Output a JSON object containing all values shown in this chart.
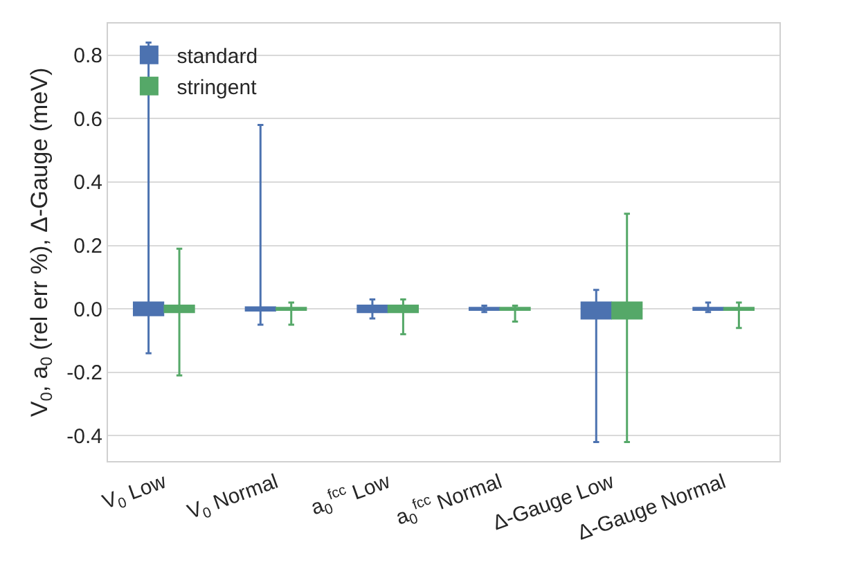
{
  "chart_data": {
    "type": "box",
    "ylabel": "V$_{0}$, a$_{0}$ (rel err %), Δ-Gauge (meV)",
    "categories": [
      "V$_{0}$ Low",
      "V$_{0}$ Normal",
      "a$_{0}$$^{fcc}$ Low",
      "a$_{0}$$^{fcc}$ Normal",
      "Δ-Gauge Low",
      "Δ-Gauge Normal"
    ],
    "ylim": [
      -0.48,
      0.9
    ],
    "yticks": [
      {
        "value": -0.4,
        "label": "-0.4"
      },
      {
        "value": -0.2,
        "label": "-0.2"
      },
      {
        "value": 0,
        "label": "0.0"
      },
      0.2,
      0.4,
      0.6,
      0.8
    ],
    "grid": "y",
    "legend": "top left",
    "series": [
      {
        "name": "standard",
        "color": "#4c72b0",
        "boxes": [
          {
            "low": -0.14,
            "q1": -0.02,
            "median": 0,
            "q3": 0.02,
            "high": 0.84
          },
          {
            "low": -0.05,
            "q1": -0.005,
            "median": 0,
            "q3": 0.005,
            "high": 0.58
          },
          {
            "low": -0.03,
            "q1": -0.01,
            "median": 0,
            "q3": 0.01,
            "high": 0.03
          },
          {
            "low": -0.01,
            "q1": -0.003,
            "median": 0,
            "q3": 0.003,
            "high": 0.01
          },
          {
            "low": -0.42,
            "q1": -0.03,
            "median": 0,
            "q3": 0.02,
            "high": 0.06
          },
          {
            "low": -0.01,
            "q1": -0.003,
            "median": 0,
            "q3": 0.003,
            "high": 0.02
          }
        ]
      },
      {
        "name": "stringent",
        "color": "#55a868",
        "boxes": [
          {
            "low": -0.21,
            "q1": -0.01,
            "median": 0,
            "q3": 0.01,
            "high": 0.19
          },
          {
            "low": -0.05,
            "q1": -0.003,
            "median": 0,
            "q3": 0.003,
            "high": 0.02
          },
          {
            "low": -0.08,
            "q1": -0.01,
            "median": 0,
            "q3": 0.01,
            "high": 0.03
          },
          {
            "low": -0.04,
            "q1": -0.003,
            "median": 0,
            "q3": 0.003,
            "high": 0.01
          },
          {
            "low": -0.42,
            "q1": -0.03,
            "median": 0,
            "q3": 0.02,
            "high": 0.3
          },
          {
            "low": -0.06,
            "q1": -0.003,
            "median": 0,
            "q3": 0.003,
            "high": 0.02
          }
        ]
      }
    ]
  }
}
